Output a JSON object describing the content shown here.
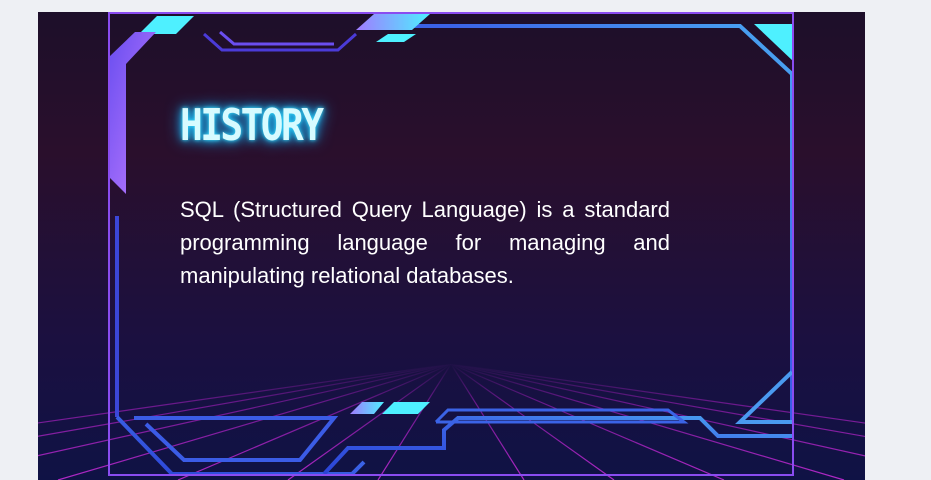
{
  "slide": {
    "title": "HISTORY",
    "body": "SQL (Structured Query Language) is a standard programming language for managing and manipulating relational databases."
  },
  "colors": {
    "frame_blue": "#3b63e6",
    "accent_cyan": "#4ef0ff",
    "accent_violet": "#b17bff",
    "grid_magenta": "#b21fc8",
    "selection": "#8a4cf0"
  },
  "icons": [
    "hud-frame",
    "neon-grid-floor"
  ]
}
